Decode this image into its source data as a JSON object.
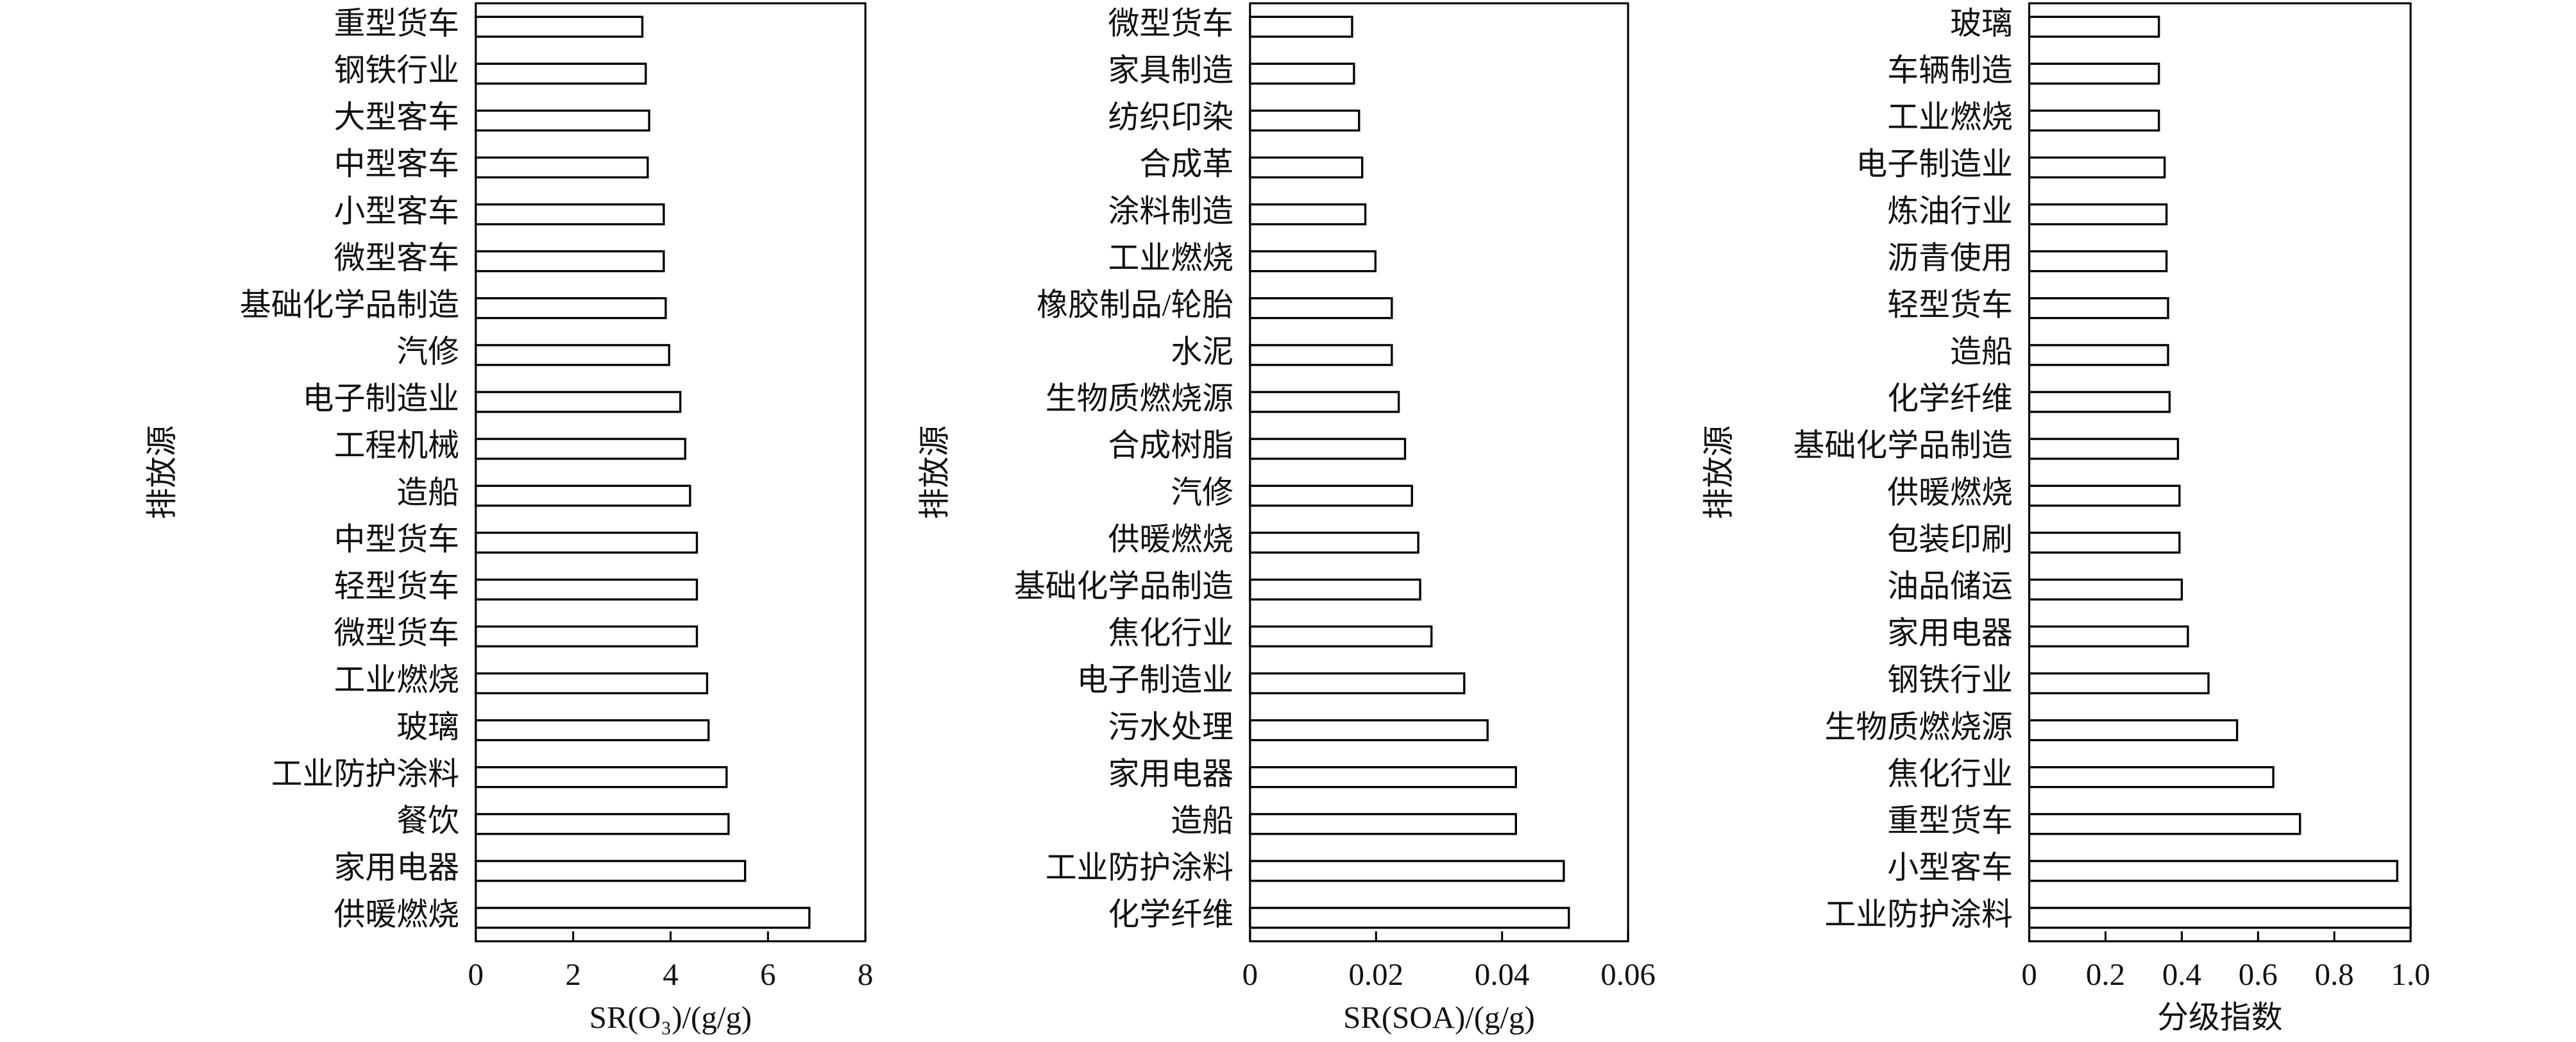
{
  "chart_data": [
    {
      "type": "barh",
      "ylabel": "排放源",
      "xlabel": "SR(O₃)/(g/g)",
      "categories": [
        "重型货车",
        "钢铁行业",
        "大型客车",
        "中型客车",
        "小型客车",
        "微型客车",
        "基础化学品制造",
        "汽修",
        "电子制造业",
        "工程机械",
        "造船",
        "中型货车",
        "轻型货车",
        "微型货车",
        "工业燃烧",
        "玻璃",
        "工业防护涂料",
        "餐饮",
        "家用电器",
        "供暖燃烧"
      ],
      "values": [
        3.42,
        3.49,
        3.56,
        3.53,
        3.86,
        3.86,
        3.9,
        3.97,
        4.2,
        4.3,
        4.4,
        4.54,
        4.54,
        4.54,
        4.75,
        4.78,
        5.15,
        5.19,
        5.53,
        6.85
      ],
      "xlim": [
        0,
        8
      ],
      "xticks": [
        0,
        2,
        4,
        6,
        8
      ],
      "color": "#ffffff",
      "edgecolor": "#000000"
    },
    {
      "type": "barh",
      "ylabel": "排放源",
      "xlabel": "SR(SOA)/(g/g)",
      "categories": [
        "微型货车",
        "家具制造",
        "纺织印染",
        "合成革",
        "涂料制造",
        "工业燃烧",
        "橡胶制品/轮胎",
        "水泥",
        "生物质燃烧源",
        "合成树脂",
        "汽修",
        "供暖燃烧",
        "基础化学品制造",
        "焦化行业",
        "电子制造业",
        "污水处理",
        "家用电器",
        "造船",
        "工业防护涂料",
        "化学纤维"
      ],
      "values": [
        0.0162,
        0.0165,
        0.0173,
        0.0178,
        0.0183,
        0.0199,
        0.0225,
        0.0225,
        0.0236,
        0.0246,
        0.0257,
        0.0267,
        0.027,
        0.0288,
        0.034,
        0.0377,
        0.0422,
        0.0422,
        0.0498,
        0.0506
      ],
      "xlim": [
        0,
        0.06
      ],
      "xticks": [
        0,
        0.02,
        0.04,
        0.06
      ],
      "color": "#ffffff",
      "edgecolor": "#000000"
    },
    {
      "type": "barh",
      "ylabel": "排放源",
      "xlabel": "分级指数",
      "categories": [
        "玻璃",
        "车辆制造",
        "工业燃烧",
        "电子制造业",
        "炼油行业",
        "沥青使用",
        "轻型货车",
        "造船",
        "化学纤维",
        "基础化学品制造",
        "供暖燃烧",
        "包装印刷",
        "油品储运",
        "家用电器",
        "钢铁行业",
        "生物质燃烧源",
        "焦化行业",
        "重型货车",
        "小型客车",
        "工业防护涂料"
      ],
      "values": [
        0.34,
        0.34,
        0.34,
        0.355,
        0.36,
        0.36,
        0.364,
        0.364,
        0.368,
        0.39,
        0.394,
        0.394,
        0.4,
        0.416,
        0.47,
        0.545,
        0.64,
        0.71,
        0.965,
        1.0
      ],
      "xlim": [
        0,
        1
      ],
      "xticks": [
        0,
        0.2,
        0.4,
        0.6,
        0.8,
        {
          "value": 1,
          "label": "1.0"
        }
      ],
      "color": "#ffffff",
      "edgecolor": "#000000"
    }
  ]
}
